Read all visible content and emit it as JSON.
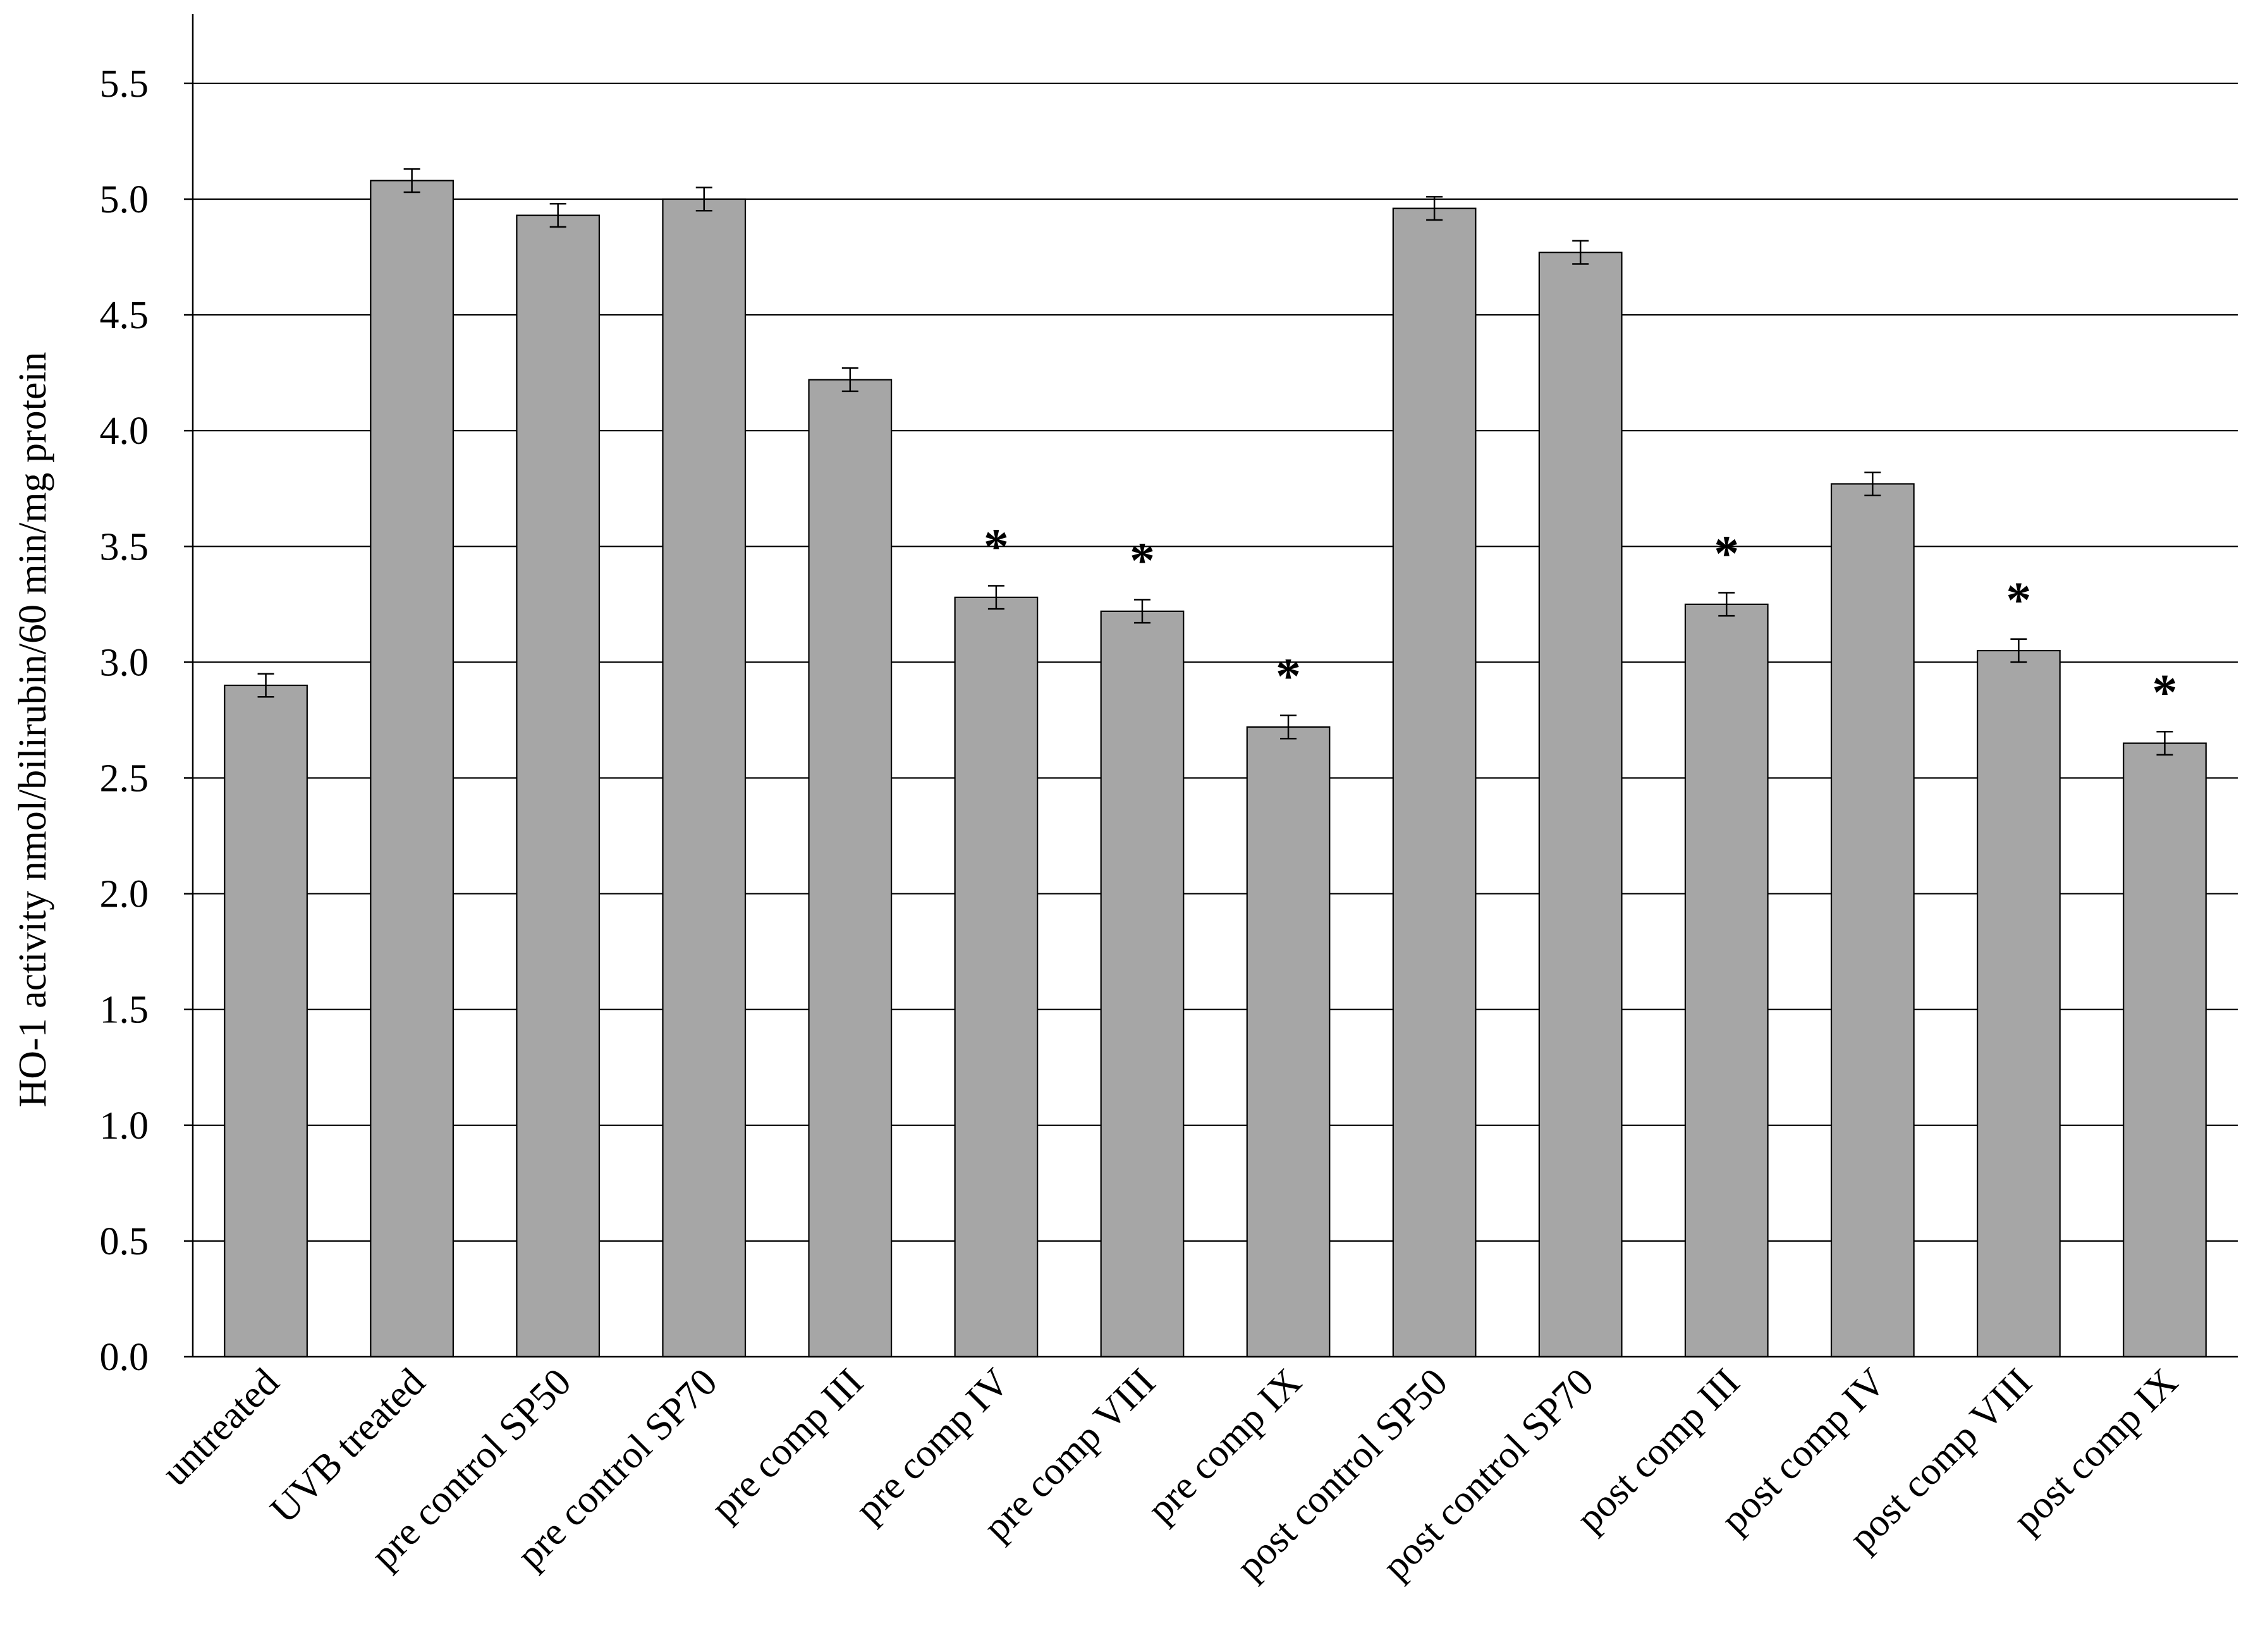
{
  "chart_data": {
    "type": "bar",
    "title": "",
    "xlabel": "",
    "ylabel": "HO-1 activity nmol/bilirubin/60 min/mg protein",
    "ylim": [
      0,
      5.8
    ],
    "yticks": [
      "0.0",
      "0.5",
      "1.0",
      "1.5",
      "2.0",
      "2.5",
      "3.0",
      "3.5",
      "4.0",
      "4.5",
      "5.0",
      "5.5"
    ],
    "grid": true,
    "legend": "none",
    "categories": [
      "untreated",
      "UVB treated",
      "pre control SP50",
      "pre control SP70",
      "pre comp III",
      "pre comp IV",
      "pre comp VIII",
      "pre comp IX",
      "post control SP50",
      "post control SP70",
      "post comp III",
      "post comp IV",
      "post comp VIII",
      "post comp IX"
    ],
    "values": [
      2.9,
      5.08,
      4.93,
      5.0,
      4.22,
      3.28,
      3.22,
      2.72,
      4.96,
      4.77,
      3.25,
      3.77,
      3.05,
      2.65
    ],
    "errors": [
      0.05,
      0.05,
      0.05,
      0.05,
      0.05,
      0.05,
      0.05,
      0.05,
      0.05,
      0.05,
      0.05,
      0.05,
      0.05,
      0.05
    ],
    "significance": [
      "",
      "",
      "",
      "",
      "",
      "*",
      "*",
      "*",
      "",
      "",
      "*",
      "",
      "*",
      "*"
    ],
    "colors": {
      "bar_fill": "#a6a6a6",
      "bar_stroke": "#000000",
      "grid": "#000000",
      "axis": "#000000"
    }
  }
}
